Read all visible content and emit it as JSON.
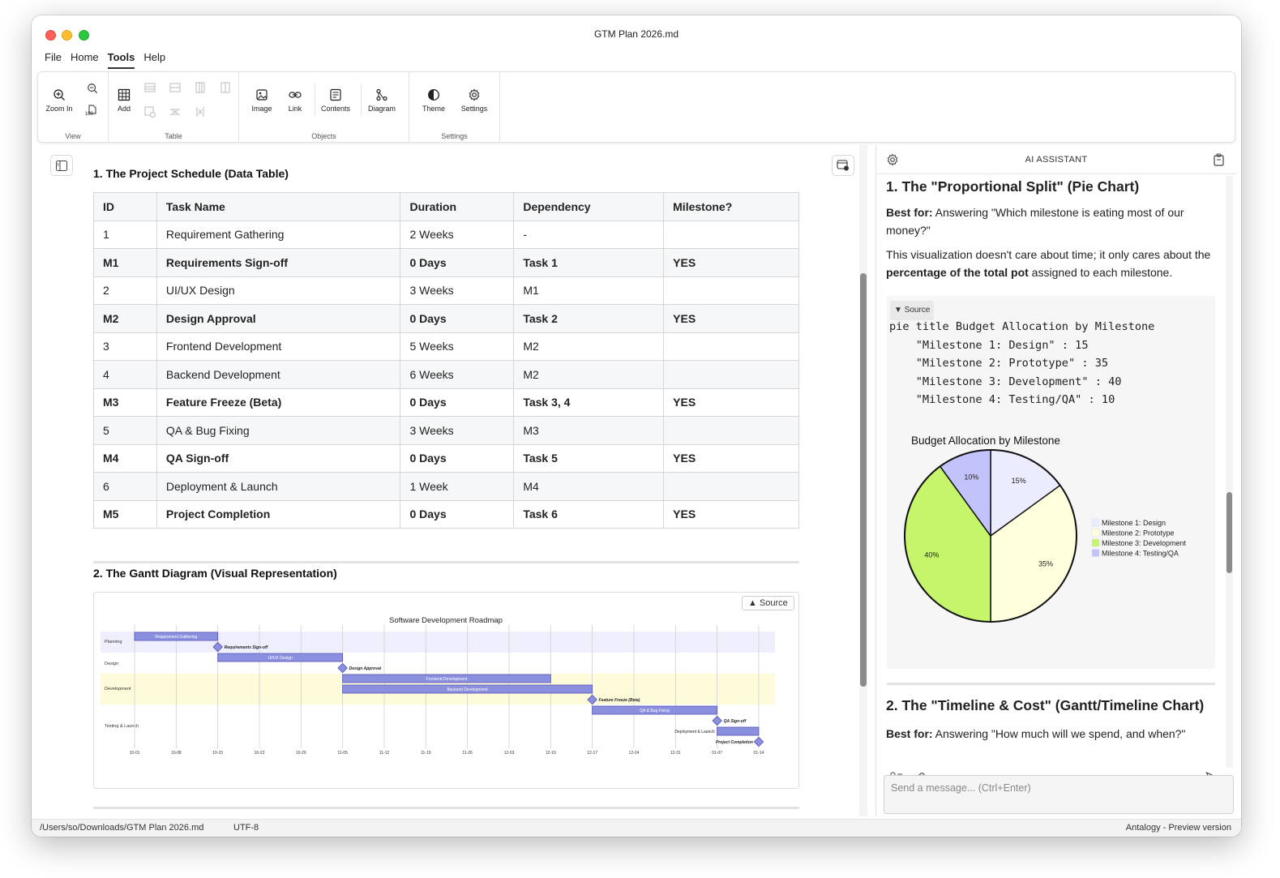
{
  "window": {
    "title": "GTM Plan 2026.md"
  },
  "menu": [
    "File",
    "Home",
    "Tools",
    "Help"
  ],
  "ribbon": {
    "groups": {
      "view": "View",
      "table": "Table",
      "objects": "Objects",
      "settings": "Settings"
    },
    "buttons": {
      "zoom_in": "Zoom In",
      "add": "Add",
      "image": "Image",
      "link": "Link",
      "contents": "Contents",
      "diagram": "Diagram",
      "theme": "Theme",
      "settings": "Settings",
      "zoom_reset": "100"
    }
  },
  "doc": {
    "section1_title": "1. The Project Schedule (Data Table)",
    "table_headers": [
      "ID",
      "Task Name",
      "Duration",
      "Dependency",
      "Milestone?"
    ],
    "table_rows": [
      [
        "1",
        "Requirement Gathering",
        "2 Weeks",
        "-",
        ""
      ],
      [
        "M1",
        "Requirements Sign-off",
        "0 Days",
        "Task 1",
        "YES"
      ],
      [
        "2",
        "UI/UX Design",
        "3 Weeks",
        "M1",
        ""
      ],
      [
        "M2",
        "Design Approval",
        "0 Days",
        "Task 2",
        "YES"
      ],
      [
        "3",
        "Frontend Development",
        "5 Weeks",
        "M2",
        ""
      ],
      [
        "4",
        "Backend Development",
        "6 Weeks",
        "M2",
        ""
      ],
      [
        "M3",
        "Feature Freeze (Beta)",
        "0 Days",
        "Task 3, 4",
        "YES"
      ],
      [
        "5",
        "QA & Bug Fixing",
        "3 Weeks",
        "M3",
        ""
      ],
      [
        "M4",
        "QA Sign-off",
        "0 Days",
        "Task 5",
        "YES"
      ],
      [
        "6",
        "Deployment & Launch",
        "1 Week",
        "M4",
        ""
      ],
      [
        "M5",
        "Project Completion",
        "0 Days",
        "Task 6",
        "YES"
      ]
    ],
    "section2_title": "2. The Gantt Diagram (Visual Representation)",
    "gantt_source_label": "▲ Source",
    "gantt": {
      "title": "Software Development Roadmap",
      "sections": [
        "Planning",
        "Design",
        "Development",
        "Testing & Launch"
      ],
      "ticks": [
        "10-01",
        "10-08",
        "10-15",
        "10-22",
        "10-29",
        "11-05",
        "11-12",
        "11-19",
        "11-26",
        "12-03",
        "12-10",
        "12-17",
        "12-24",
        "12-31",
        "01-07",
        "01-14"
      ],
      "tasks": [
        {
          "label": "Requirement Gathering",
          "start": "10-01",
          "end": "10-15",
          "type": "task"
        },
        {
          "label": "Requirements Sign-off",
          "start": "10-15",
          "end": "10-15",
          "type": "milestone"
        },
        {
          "label": "UI/UX Design",
          "start": "10-15",
          "end": "11-05",
          "type": "task"
        },
        {
          "label": "Design Approval",
          "start": "11-05",
          "end": "11-05",
          "type": "milestone"
        },
        {
          "label": "Frontend Development",
          "start": "11-05",
          "end": "12-10",
          "type": "task"
        },
        {
          "label": "Backend Development",
          "start": "11-05",
          "end": "12-17",
          "type": "task"
        },
        {
          "label": "Feature Freeze (Beta)",
          "start": "12-17",
          "end": "12-17",
          "type": "milestone"
        },
        {
          "label": "QA & Bug Fixing",
          "start": "12-17",
          "end": "01-07",
          "type": "task"
        },
        {
          "label": "QA Sign-off",
          "start": "01-07",
          "end": "01-07",
          "type": "milestone"
        },
        {
          "label": "Deployment & Launch",
          "start": "01-07",
          "end": "01-14",
          "type": "task"
        },
        {
          "label": "Project Completion",
          "start": "01-14",
          "end": "01-14",
          "type": "milestone"
        }
      ]
    }
  },
  "assistant": {
    "title": "AI ASSISTANT",
    "h1": "1. The \"Proportional Split\" (Pie Chart)",
    "p1_bold": "Best for:",
    "p1_text": " Answering \"Which milestone is eating most of our money?\"",
    "p2_a": "This visualization doesn't care about time; it only cares about the ",
    "p2_bold": "percentage of the total pot",
    "p2_b": " assigned to each milestone.",
    "source_label": "▼ Source",
    "code": "pie title Budget Allocation by Milestone\n    \"Milestone 1: Design\" : 15\n    \"Milestone 2: Prototype\" : 35\n    \"Milestone 3: Development\" : 40\n    \"Milestone 4: Testing/QA\" : 10",
    "h2": "2. The \"Timeline & Cost\" (Gantt/Timeline Chart)",
    "p3_bold": "Best for:",
    "p3_text": " Answering \"How much will we spend, and when?\"",
    "input_placeholder": "Send a message... (Ctrl+Enter)"
  },
  "chart_data": {
    "type": "pie",
    "title": "Budget Allocation by Milestone",
    "categories": [
      "Milestone 1: Design",
      "Milestone 2: Prototype",
      "Milestone 3: Development",
      "Milestone 4: Testing/QA"
    ],
    "values": [
      15,
      35,
      40,
      10
    ],
    "labels": [
      "15%",
      "35%",
      "40%",
      "10%"
    ],
    "colors": [
      "#ececff",
      "#ffffde",
      "#c5f56b",
      "#c3c3fb"
    ],
    "legend": "right"
  },
  "status": {
    "path": "/Users/so/Downloads/GTM Plan 2026.md",
    "encoding": "UTF-8",
    "app": "Antalogy - Preview version"
  }
}
